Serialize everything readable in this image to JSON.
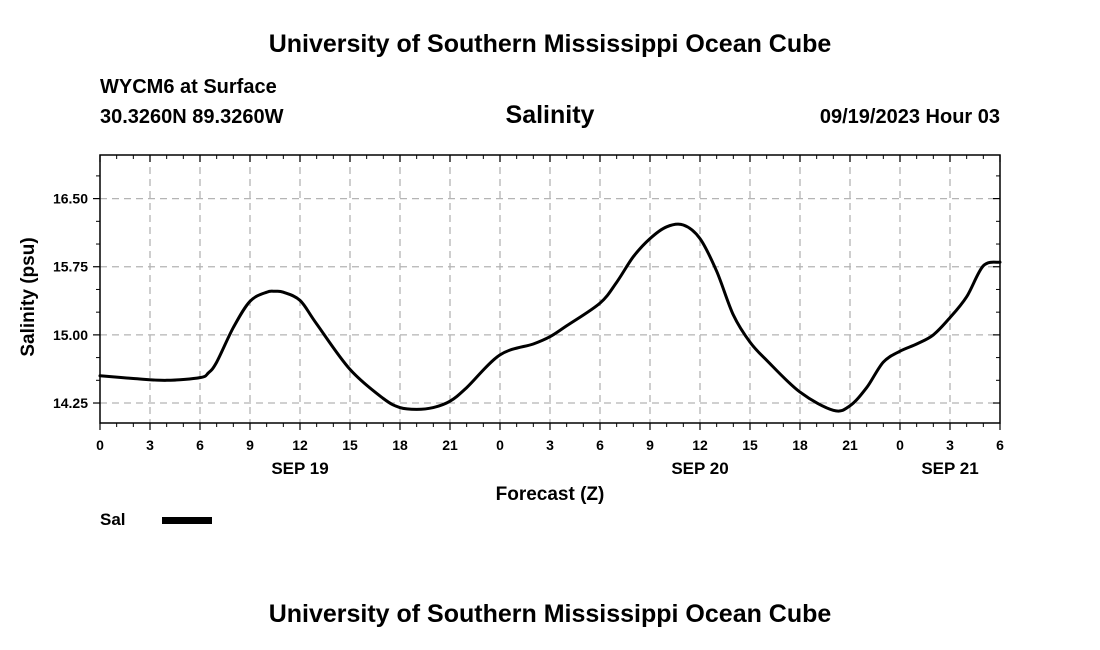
{
  "page": {
    "title_top": "University of Southern Mississippi Ocean Cube",
    "title_bottom": "University of Southern Mississippi Ocean Cube",
    "station": "WYCM6 at Surface",
    "coords": "30.3260N  89.3260W",
    "variable": "Salinity",
    "datetime": "09/19/2023 Hour 03"
  },
  "chart_data": {
    "type": "line",
    "title": "Salinity",
    "xlabel": "Forecast (Z)",
    "ylabel": "Salinity (psu)",
    "xlim": [
      0,
      54
    ],
    "ylim": [
      14.03,
      16.98
    ],
    "yticks": [
      14.25,
      15.0,
      15.75,
      16.5
    ],
    "ytick_labels": [
      "14.25",
      "15.00",
      "15.75",
      "16.50"
    ],
    "xticks": [
      0,
      3,
      6,
      9,
      12,
      15,
      18,
      21,
      24,
      27,
      30,
      33,
      36,
      39,
      42,
      45,
      48,
      51,
      54
    ],
    "xtick_labels": [
      "0",
      "3",
      "6",
      "9",
      "12",
      "15",
      "18",
      "21",
      "0",
      "3",
      "6",
      "9",
      "12",
      "15",
      "18",
      "21",
      "0",
      "3",
      "6"
    ],
    "date_labels": [
      {
        "x": 12,
        "label": "SEP 19"
      },
      {
        "x": 36,
        "label": "SEP 20"
      },
      {
        "x": 51,
        "label": "SEP 21"
      }
    ],
    "grid": true,
    "legend": {
      "position": "bottom-left",
      "entries": [
        {
          "name": "Sal",
          "color": "#000000"
        }
      ]
    },
    "series": [
      {
        "name": "Sal",
        "color": "#000000",
        "x": [
          0,
          2,
          4,
          6,
          6.5,
          7,
          8,
          9,
          10,
          10.5,
          11,
          12,
          13,
          15,
          17,
          18,
          19,
          20,
          21,
          22,
          24,
          26,
          27,
          28,
          30,
          31,
          32,
          33,
          34,
          35,
          36,
          37,
          38,
          39,
          40,
          42,
          44,
          45,
          46,
          47,
          48,
          49,
          50,
          51,
          52,
          53,
          54
        ],
        "values": [
          14.55,
          14.52,
          14.5,
          14.53,
          14.58,
          14.7,
          15.08,
          15.37,
          15.47,
          15.48,
          15.47,
          15.38,
          15.12,
          14.62,
          14.3,
          14.2,
          14.18,
          14.2,
          14.27,
          14.42,
          14.78,
          14.9,
          14.98,
          15.1,
          15.35,
          15.58,
          15.86,
          16.06,
          16.19,
          16.21,
          16.06,
          15.7,
          15.22,
          14.92,
          14.72,
          14.37,
          14.17,
          14.22,
          14.42,
          14.7,
          14.82,
          14.9,
          15.0,
          15.19,
          15.42,
          15.76,
          15.8
        ]
      }
    ]
  }
}
